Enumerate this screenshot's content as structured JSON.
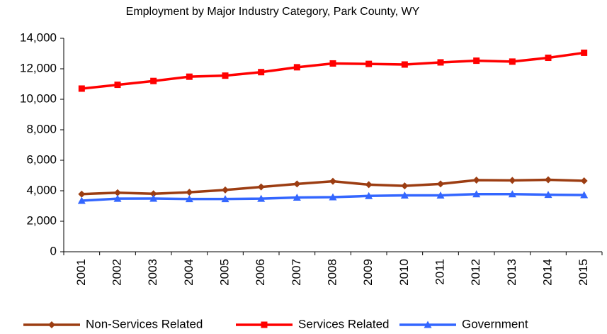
{
  "chart_data": {
    "type": "line",
    "title": "Employment by Major Industry Category, Park County, WY",
    "categories": [
      "2001",
      "2002",
      "2003",
      "2004",
      "2005",
      "2006",
      "2007",
      "2008",
      "2009",
      "2010",
      "2011",
      "2012",
      "2013",
      "2014",
      "2015"
    ],
    "series": [
      {
        "name": "Non-Services Related",
        "color": "#9c3d12",
        "marker": "diamond",
        "values": [
          3780,
          3870,
          3800,
          3900,
          4050,
          4250,
          4450,
          4620,
          4400,
          4320,
          4450,
          4700,
          4680,
          4720,
          4650
        ]
      },
      {
        "name": "Services Related",
        "color": "#ff0000",
        "marker": "square",
        "values": [
          10700,
          10950,
          11200,
          11480,
          11550,
          11780,
          12100,
          12350,
          12320,
          12280,
          12420,
          12530,
          12470,
          12720,
          13050
        ]
      },
      {
        "name": "Government",
        "color": "#3366ff",
        "marker": "triangle",
        "values": [
          3350,
          3480,
          3490,
          3460,
          3460,
          3480,
          3560,
          3580,
          3660,
          3700,
          3700,
          3780,
          3780,
          3740,
          3720
        ]
      }
    ],
    "ylim": [
      0,
      14000
    ],
    "yticks": [
      0,
      {
        "value": 2000,
        "label": "2,000"
      },
      {
        "value": 4000,
        "label": "4,000"
      },
      {
        "value": 6000,
        "label": "6,000"
      },
      {
        "value": 8000,
        "label": "8,000"
      },
      {
        "value": 10000,
        "label": "10,000"
      },
      {
        "value": 12000,
        "label": "12,000"
      },
      {
        "value": 14000,
        "label": "14,000"
      }
    ],
    "grid": false,
    "legend": "bottom"
  }
}
